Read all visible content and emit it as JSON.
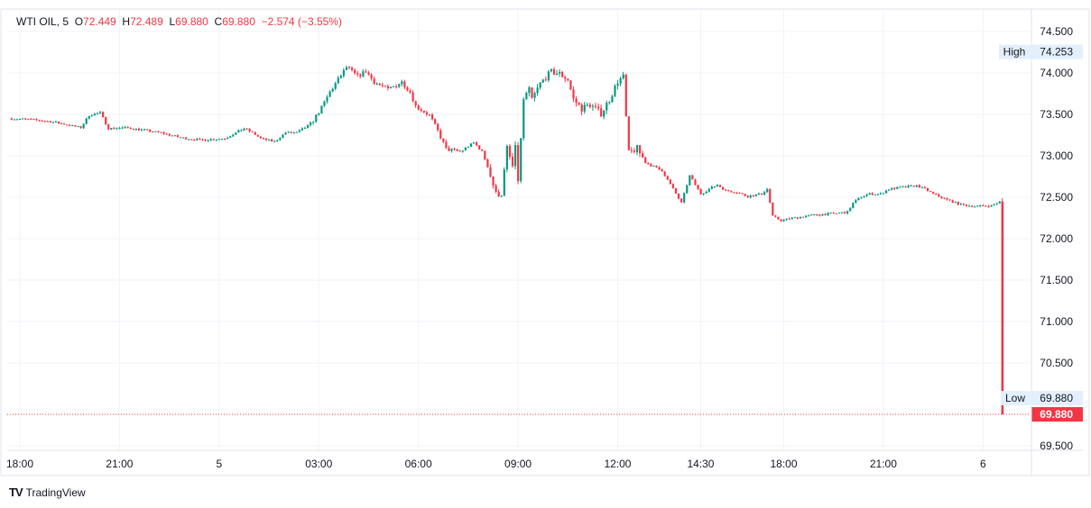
{
  "legend": {
    "symbol": "WTI OIL, 5",
    "o_label": "O",
    "o": "72.449",
    "h_label": "H",
    "h": "72.489",
    "l_label": "L",
    "l": "69.880",
    "c_label": "C",
    "c": "69.880",
    "change": "−2.574 (−3.55%)"
  },
  "branding": "TradingView",
  "colors": {
    "up": "#089981",
    "down": "#F23645",
    "grid": "#f0f3fa",
    "label_bg": "#e3effd"
  },
  "chart_data": {
    "type": "candlestick",
    "title": "WTI OIL, 5",
    "interval_minutes": 5,
    "ylim": [
      69.4,
      74.6
    ],
    "y_ticks": [
      "74.500",
      "74.000",
      "73.500",
      "73.000",
      "72.500",
      "72.000",
      "71.500",
      "71.000",
      "70.500",
      "69.500"
    ],
    "x_ticks": [
      {
        "bar": 0,
        "label": "18:00"
      },
      {
        "bar": 36,
        "label": "21:00"
      },
      {
        "bar": 72,
        "label": "5"
      },
      {
        "bar": 108,
        "label": "03:00"
      },
      {
        "bar": 144,
        "label": "06:00"
      },
      {
        "bar": 180,
        "label": "09:00"
      },
      {
        "bar": 216,
        "label": "12:00"
      },
      {
        "bar": 246,
        "label": "14:30"
      },
      {
        "bar": 276,
        "label": "18:00"
      },
      {
        "bar": 312,
        "label": "21:00"
      },
      {
        "bar": 348,
        "label": "6"
      }
    ],
    "first_bar": -4,
    "close_path": [
      [
        -4,
        73.45
      ],
      [
        3,
        73.44
      ],
      [
        12,
        73.41
      ],
      [
        22,
        73.34
      ],
      [
        25,
        73.49
      ],
      [
        29,
        73.52
      ],
      [
        32,
        73.33
      ],
      [
        38,
        73.34
      ],
      [
        45,
        73.31
      ],
      [
        52,
        73.27
      ],
      [
        58,
        73.22
      ],
      [
        65,
        73.19
      ],
      [
        74,
        73.21
      ],
      [
        81,
        73.33
      ],
      [
        84,
        73.28
      ],
      [
        87,
        73.21
      ],
      [
        92,
        73.17
      ],
      [
        96,
        73.28
      ],
      [
        100,
        73.28
      ],
      [
        105,
        73.38
      ],
      [
        109,
        73.58
      ],
      [
        112,
        73.77
      ],
      [
        115,
        73.92
      ],
      [
        118,
        74.07
      ],
      [
        122,
        73.96
      ],
      [
        125,
        74.02
      ],
      [
        128,
        73.89
      ],
      [
        133,
        73.8
      ],
      [
        138,
        73.89
      ],
      [
        141,
        73.77
      ],
      [
        143,
        73.6
      ],
      [
        148,
        73.49
      ],
      [
        151,
        73.3
      ],
      [
        154,
        73.08
      ],
      [
        159,
        73.05
      ],
      [
        164,
        73.16
      ],
      [
        167,
        73.05
      ],
      [
        169,
        72.87
      ],
      [
        172,
        72.54
      ],
      [
        174,
        72.54
      ],
      [
        176,
        73.09
      ],
      [
        178,
        72.87
      ],
      [
        179,
        73.09
      ],
      [
        180,
        72.71
      ],
      [
        182,
        73.68
      ],
      [
        184,
        73.79
      ],
      [
        185,
        73.68
      ],
      [
        188,
        73.87
      ],
      [
        190,
        73.95
      ],
      [
        192,
        74.01
      ],
      [
        195,
        73.99
      ],
      [
        198,
        73.92
      ],
      [
        200,
        73.68
      ],
      [
        203,
        73.57
      ],
      [
        206,
        73.62
      ],
      [
        210,
        73.51
      ],
      [
        213,
        73.68
      ],
      [
        216,
        73.9
      ],
      [
        218,
        73.95
      ],
      [
        219,
        73.46
      ],
      [
        220,
        73.03
      ],
      [
        223,
        73.09
      ],
      [
        226,
        72.92
      ],
      [
        229,
        72.87
      ],
      [
        232,
        72.82
      ],
      [
        236,
        72.6
      ],
      [
        239,
        72.43
      ],
      [
        242,
        72.76
      ],
      [
        246,
        72.54
      ],
      [
        249,
        72.6
      ],
      [
        252,
        72.65
      ],
      [
        255,
        72.58
      ],
      [
        259,
        72.56
      ],
      [
        263,
        72.51
      ],
      [
        268,
        72.54
      ],
      [
        270,
        72.6
      ],
      [
        272,
        72.27
      ],
      [
        275,
        72.22
      ],
      [
        278,
        72.24
      ],
      [
        283,
        72.27
      ],
      [
        288,
        72.29
      ],
      [
        293,
        72.3
      ],
      [
        299,
        72.32
      ],
      [
        301,
        72.43
      ],
      [
        304,
        72.51
      ],
      [
        307,
        72.54
      ],
      [
        311,
        72.54
      ],
      [
        314,
        72.6
      ],
      [
        319,
        72.62
      ],
      [
        324,
        72.64
      ],
      [
        327,
        72.6
      ],
      [
        330,
        72.54
      ],
      [
        335,
        72.47
      ],
      [
        340,
        72.41
      ],
      [
        345,
        72.39
      ],
      [
        351,
        72.4
      ],
      [
        354,
        72.449
      ]
    ],
    "last_bar": {
      "bar": 355,
      "open": 72.449,
      "high": 72.489,
      "low": 69.88,
      "close": 69.88
    },
    "session_high": {
      "label": "High",
      "value": 74.253,
      "text": "74.253"
    },
    "session_low": {
      "label": "Low",
      "value": 69.88,
      "text": "69.880"
    },
    "last_price": {
      "value": 69.88,
      "text": "69.880"
    }
  }
}
